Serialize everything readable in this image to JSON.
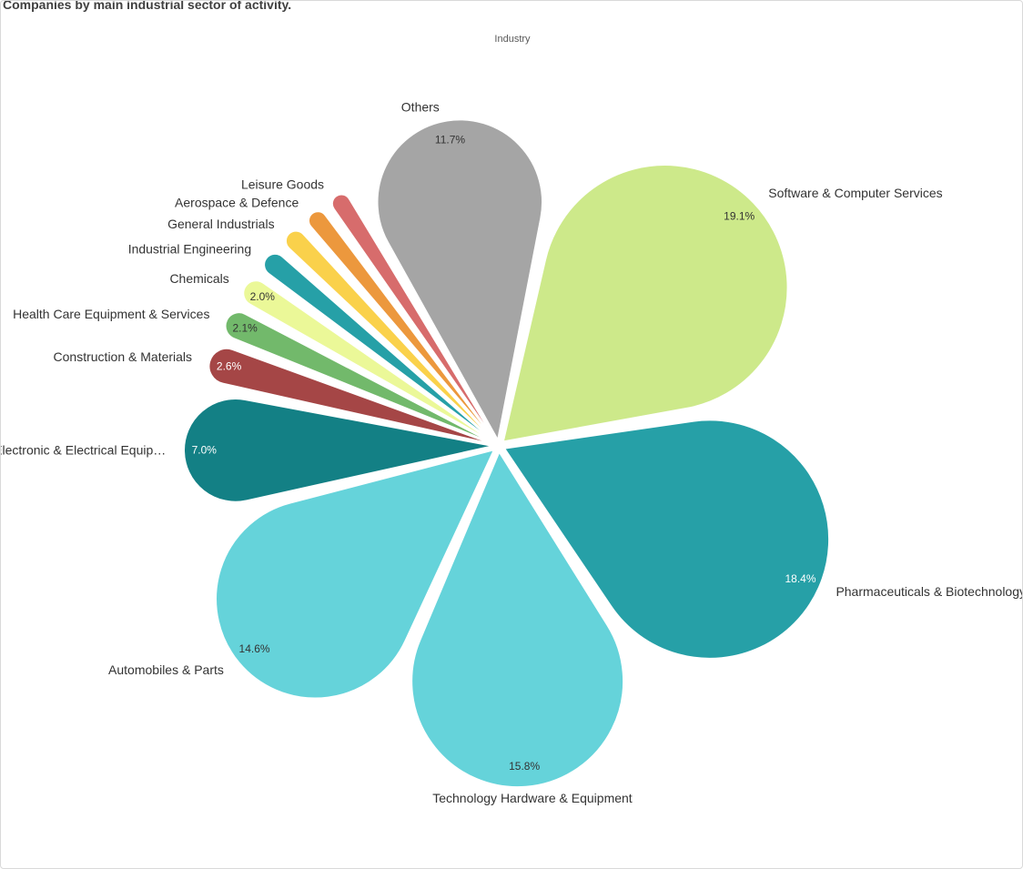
{
  "chart_data": {
    "type": "pie",
    "title": "Companies  by main industrial sector  of activity.",
    "subtitle": "Industry",
    "categories": [
      "Software & Computer Services",
      "Pharmaceuticals & Biotechnology",
      "Technology Hardware & Equipment",
      "Automobiles & Parts",
      "Electronic & Electrical Equip…",
      "Construction & Materials",
      "Health Care Equipment & Services",
      "Chemicals",
      "Industrial Engineering",
      "General Industrials",
      "Aerospace & Defence",
      "Leisure Goods",
      "Others"
    ],
    "values": [
      19.1,
      18.4,
      15.8,
      14.6,
      7.0,
      2.6,
      2.1,
      2.0,
      1.8,
      1.7,
      1.6,
      1.6,
      11.7
    ],
    "value_labels": [
      "19.1%",
      "18.4%",
      "15.8%",
      "14.6%",
      "7.0%",
      "2.6%",
      "2.1%",
      "2.0%",
      null,
      null,
      null,
      null,
      "11.7%"
    ],
    "colors": [
      "#cde98a",
      "#26a0a7",
      "#65d3da",
      "#65d3da",
      "#138085",
      "#a54646",
      "#72b96b",
      "#ebf898",
      "#26a0a7",
      "#fad14b",
      "#ec983d",
      "#d76c6c",
      "#a5a5a5"
    ]
  }
}
